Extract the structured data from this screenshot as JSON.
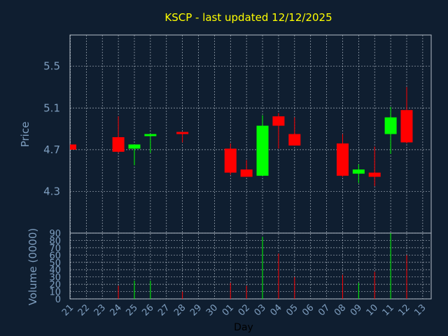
{
  "colors": {
    "background": "#0f1e30",
    "up": "#00ff00",
    "down": "#ff0000",
    "grid": "#c8d2dc",
    "text": "#7f9fc0",
    "title": "#ffff00"
  },
  "chart_data": {
    "type": "candlestick",
    "title": "KSCP - last updated 12/12/2025",
    "ylabel": "Price",
    "volume_ylabel": "Volume (0000)",
    "xlabel": "Day",
    "ylim": [
      3.9,
      5.8
    ],
    "yticks": [
      "4.3",
      "4.7",
      "5.1",
      "5.5"
    ],
    "volume_ylim": [
      0,
      90
    ],
    "volume_yticks": [
      "0",
      "10",
      "20",
      "30",
      "40",
      "50",
      "60",
      "70",
      "80",
      "90"
    ],
    "grid": true,
    "x_tick_labels": [
      "21",
      "22",
      "23",
      "24",
      "25",
      "26",
      "27",
      "28",
      "29",
      "30",
      "01",
      "02",
      "03",
      "04",
      "05",
      "06",
      "07",
      "08",
      "09",
      "10",
      "11",
      "12",
      "13"
    ],
    "candles": [
      {
        "day": "21",
        "open": 4.75,
        "high": 4.75,
        "low": 4.7,
        "close": 4.7,
        "volume": 0
      },
      {
        "day": "24",
        "open": 4.82,
        "high": 5.02,
        "low": 4.67,
        "close": 4.68,
        "volume": 18
      },
      {
        "day": "25",
        "open": 4.71,
        "high": 4.75,
        "low": 4.55,
        "close": 4.75,
        "volume": 25
      },
      {
        "day": "26",
        "open": 4.83,
        "high": 4.85,
        "low": 4.67,
        "close": 4.85,
        "volume": 25
      },
      {
        "day": "28",
        "open": 4.87,
        "high": 4.87,
        "low": 4.77,
        "close": 4.85,
        "volume": 10
      },
      {
        "day": "01",
        "open": 4.71,
        "high": 4.76,
        "low": 4.46,
        "close": 4.48,
        "volume": 22
      },
      {
        "day": "02",
        "open": 4.51,
        "high": 4.6,
        "low": 4.44,
        "close": 4.44,
        "volume": 18
      },
      {
        "day": "03",
        "open": 4.45,
        "high": 5.03,
        "low": 4.45,
        "close": 4.93,
        "volume": 85
      },
      {
        "day": "04",
        "open": 5.02,
        "high": 5.05,
        "low": 4.71,
        "close": 4.93,
        "volume": 62
      },
      {
        "day": "05",
        "open": 4.85,
        "high": 5.01,
        "low": 4.74,
        "close": 4.74,
        "volume": 30
      },
      {
        "day": "08",
        "open": 4.76,
        "high": 4.85,
        "low": 4.44,
        "close": 4.45,
        "volume": 33
      },
      {
        "day": "09",
        "open": 4.47,
        "high": 4.56,
        "low": 4.38,
        "close": 4.51,
        "volume": 22
      },
      {
        "day": "10",
        "open": 4.48,
        "high": 4.73,
        "low": 4.35,
        "close": 4.44,
        "volume": 37
      },
      {
        "day": "11",
        "open": 4.85,
        "high": 5.11,
        "low": 4.66,
        "close": 5.01,
        "volume": 90
      },
      {
        "day": "12",
        "open": 5.08,
        "high": 5.3,
        "low": 4.76,
        "close": 4.77,
        "volume": 60
      }
    ]
  }
}
